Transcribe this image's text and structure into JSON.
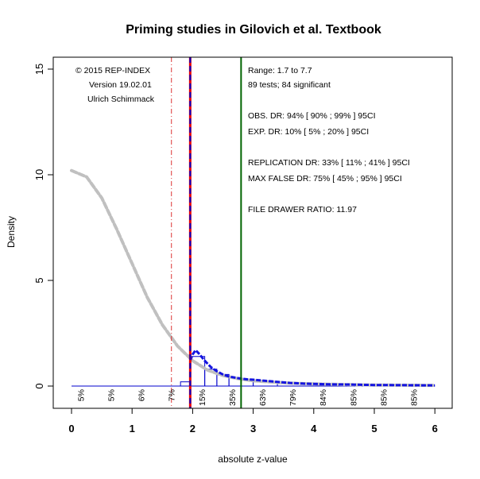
{
  "chart_data": {
    "type": "histogram-density",
    "title": "Priming studies in Gilovich et al. Textbook",
    "xlabel": "absolute z-value",
    "ylabel": "Density",
    "xlim": [
      0,
      6
    ],
    "ylim": [
      -1.5,
      16
    ],
    "x_ticks": [
      0,
      1,
      2,
      3,
      4,
      5,
      6
    ],
    "y_ticks": [
      0,
      5,
      10,
      15
    ],
    "credit_lines": [
      "© 2015 REP-INDEX",
      "Version 19.02.01",
      "Ulrich Schimmack"
    ],
    "stats_lines": [
      "Range: 1.7 to 7.7",
      "89 tests; 84 significant",
      "",
      "OBS. DR: 94% [ 90% ; 99% ] 95CI",
      "EXP. DR: 10% [ 5% ; 20% ] 95CI",
      "",
      "REPLICATION DR: 33% [ 11% ; 41% ] 95CI",
      "MAX FALSE DR: 75% [ 45% ; 95% ] 95CI",
      "",
      "FILE DRAWER RATIO: 11.97"
    ],
    "percent_labels": [
      {
        "x": 0.15,
        "label": "5%"
      },
      {
        "x": 0.65,
        "label": "5%"
      },
      {
        "x": 1.15,
        "label": "6%"
      },
      {
        "x": 1.65,
        "label": "7%"
      },
      {
        "x": 2.15,
        "label": "15%"
      },
      {
        "x": 2.65,
        "label": "35%"
      },
      {
        "x": 3.15,
        "label": "63%"
      },
      {
        "x": 3.65,
        "label": "79%"
      },
      {
        "x": 4.15,
        "label": "84%"
      },
      {
        "x": 4.65,
        "label": "85%"
      },
      {
        "x": 5.15,
        "label": "85%"
      },
      {
        "x": 5.65,
        "label": "85%"
      }
    ],
    "vertical_lines": [
      {
        "name": "one-tailed-line",
        "x": 1.65,
        "color": "#dd3333",
        "style": "dashdot"
      },
      {
        "name": "significance-line",
        "x": 1.96,
        "color": "#e60000",
        "style": "solid"
      },
      {
        "name": "significance-line-blue",
        "x": 1.96,
        "color": "#0000cc",
        "style": "dashed"
      },
      {
        "name": "median-line",
        "x": 2.8,
        "color": "#006400",
        "style": "solid"
      }
    ],
    "histogram": [
      {
        "x0": 1.8,
        "x1": 1.96,
        "density": 0.2
      },
      {
        "x0": 1.96,
        "x1": 2.2,
        "density": 1.4
      },
      {
        "x0": 2.2,
        "x1": 2.4,
        "density": 0.8
      },
      {
        "x0": 2.4,
        "x1": 2.6,
        "density": 0.55
      },
      {
        "x0": 2.6,
        "x1": 2.8,
        "density": 0.4
      },
      {
        "x0": 2.8,
        "x1": 3.0,
        "density": 0.3
      },
      {
        "x0": 3.0,
        "x1": 3.4,
        "density": 0.2
      }
    ],
    "gray_curve": {
      "x": [
        0,
        0.25,
        0.5,
        0.75,
        1.0,
        1.25,
        1.5,
        1.75,
        2.0,
        2.25,
        2.5,
        2.75,
        3.0,
        3.5,
        4.0,
        4.5,
        5.0,
        5.5,
        6.0
      ],
      "y": [
        10.2,
        9.9,
        8.9,
        7.4,
        5.8,
        4.2,
        2.9,
        1.9,
        1.2,
        0.75,
        0.5,
        0.35,
        0.25,
        0.15,
        0.1,
        0.07,
        0.05,
        0.04,
        0.03
      ]
    },
    "blue_curve": {
      "x": [
        1.96,
        2.0,
        2.05,
        2.1,
        2.2,
        2.3,
        2.4,
        2.5,
        2.6,
        2.7,
        2.8,
        2.9,
        3.0,
        3.2,
        3.4,
        3.6,
        3.8,
        4.0,
        4.3,
        4.6,
        5.0,
        5.5,
        6.0
      ],
      "y": [
        1.2,
        1.5,
        1.7,
        1.55,
        1.2,
        0.9,
        0.7,
        0.55,
        0.45,
        0.4,
        0.35,
        0.32,
        0.3,
        0.25,
        0.2,
        0.15,
        0.12,
        0.1,
        0.08,
        0.07,
        0.05,
        0.04,
        0.03
      ]
    },
    "zero_line_color": "#0000cc"
  }
}
